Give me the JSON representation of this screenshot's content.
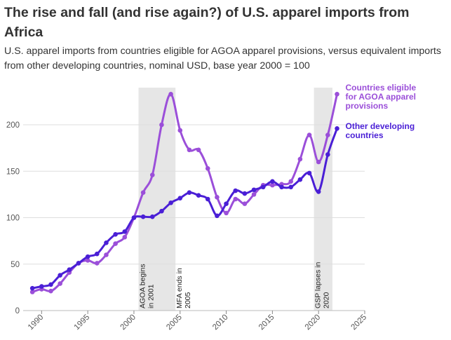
{
  "title": "The rise and fall (and rise again?) of U.S. apparel imports from Africa",
  "subtitle": "U.S. apparel imports from countries eligible for AGOA apparel provisions, versus equivalent imports from other developing countries, nominal USD, base year 2000 = 100",
  "colors": {
    "agoa": "#9b4fd9",
    "other": "#4a1fd6",
    "band": "#e6e6e6",
    "grid": "#dddddd"
  },
  "chart_data": {
    "type": "line",
    "xlim": [
      1988,
      2025
    ],
    "ylim": [
      0,
      240
    ],
    "x_ticks": [
      1990,
      1995,
      2000,
      2005,
      2010,
      2015,
      2020,
      2025
    ],
    "y_ticks": [
      0,
      50,
      100,
      150,
      200
    ],
    "shaded_periods": [
      {
        "start": 2000.5,
        "end": 2004.5,
        "label_lines": [
          "AGOA begins",
          "in 2001"
        ]
      },
      {
        "start": 2019.5,
        "end": 2021.5,
        "label_lines": [
          "GSP lapses in",
          "2020"
        ]
      }
    ],
    "vertical_annotations": [
      {
        "x": 2004.5,
        "label_lines": [
          "MFA ends in",
          "2005"
        ]
      }
    ],
    "series": [
      {
        "name_lines": [
          "Countries eligible",
          "for AGOA apparel",
          "provisions"
        ],
        "color_key": "agoa",
        "x": [
          1989,
          1990,
          1991,
          1992,
          1993,
          1994,
          1995,
          1996,
          1997,
          1998,
          1999,
          2000,
          2001,
          2002,
          2003,
          2004,
          2005,
          2006,
          2007,
          2008,
          2009,
          2010,
          2011,
          2012,
          2013,
          2014,
          2015,
          2016,
          2017,
          2018,
          2019,
          2020,
          2021,
          2022
        ],
        "y": [
          20,
          23,
          21,
          29,
          41,
          51,
          54,
          51,
          60,
          72,
          79,
          100,
          127,
          146,
          200,
          233,
          194,
          173,
          173,
          153,
          122,
          105,
          120,
          115,
          125,
          135,
          135,
          136,
          139,
          163,
          189,
          160,
          189,
          233
        ]
      },
      {
        "name_lines": [
          "Other developing",
          "countries"
        ],
        "color_key": "other",
        "x": [
          1989,
          1990,
          1991,
          1992,
          1993,
          1994,
          1995,
          1996,
          1997,
          1998,
          1999,
          2000,
          2001,
          2002,
          2003,
          2004,
          2005,
          2006,
          2007,
          2008,
          2009,
          2010,
          2011,
          2012,
          2013,
          2014,
          2015,
          2016,
          2017,
          2018,
          2019,
          2020,
          2021,
          2022
        ],
        "y": [
          24,
          26,
          28,
          38,
          44,
          51,
          58,
          61,
          73,
          82,
          85,
          100,
          101,
          101,
          107,
          116,
          121,
          127,
          124,
          120,
          102,
          115,
          129,
          126,
          130,
          133,
          139,
          133,
          133,
          141,
          148,
          128,
          168,
          196
        ]
      }
    ]
  }
}
